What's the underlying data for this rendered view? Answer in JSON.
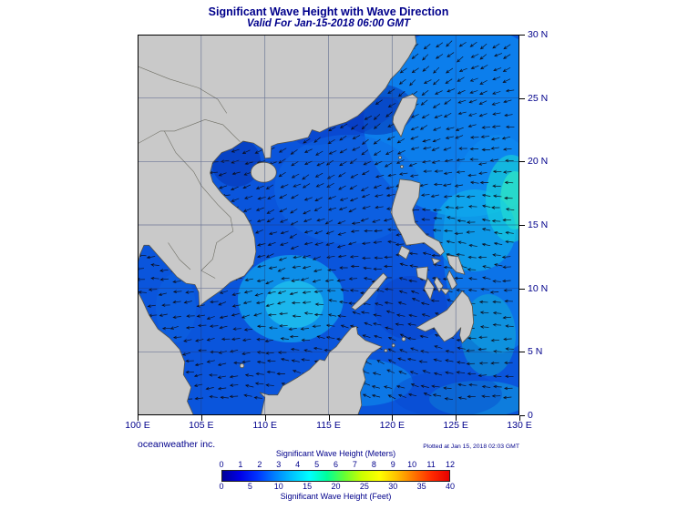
{
  "header": {
    "title": "Significant Wave Height with Wave Direction",
    "subtitle": "Valid For Jan-15-2018 06:00 GMT"
  },
  "axes": {
    "lon_ticks": [
      "100 E",
      "105 E",
      "110 E",
      "115 E",
      "120 E",
      "125 E",
      "130 E"
    ],
    "lat_ticks": [
      "30 N",
      "25 N",
      "20 N",
      "15 N",
      "10 N",
      "5 N",
      "0"
    ]
  },
  "legend": {
    "meters_label": "Significant Wave Height (Meters)",
    "meters_ticks": [
      "0",
      "1",
      "2",
      "3",
      "4",
      "5",
      "6",
      "7",
      "8",
      "9",
      "10",
      "11",
      "12"
    ],
    "feet_label": "Significant Wave Height (Feet)",
    "feet_ticks": [
      "0",
      "5",
      "10",
      "15",
      "20",
      "25",
      "30",
      "35",
      "40"
    ],
    "gradient_colors": [
      "#000099",
      "#0000e6",
      "#0033ff",
      "#0080ff",
      "#00c3ff",
      "#00ffff",
      "#00ff99",
      "#66ff33",
      "#ccff00",
      "#ffff00",
      "#ffbf00",
      "#ff7300",
      "#ff2a00",
      "#e60000"
    ]
  },
  "footer": {
    "credit": "oceanweather inc.",
    "plotted_at": "Plotted at Jan 15, 2018 02:03 GMT"
  },
  "colors": {
    "navy": "#00008b",
    "ocean": "#0a55dc",
    "land": "#c9c9c9",
    "coastline": "#55544a",
    "grid": "#25366e"
  },
  "chart_data": {
    "type": "heatmap",
    "title": "Significant Wave Height with Wave Direction",
    "valid_for": "Jan-15-2018 06:00 GMT",
    "x_axis": {
      "ticks": [
        "100 E",
        "105 E",
        "110 E",
        "115 E",
        "120 E",
        "125 E",
        "130 E"
      ],
      "range_lon_e": [
        100,
        130
      ]
    },
    "y_axis": {
      "ticks": [
        "0",
        "5 N",
        "10 N",
        "15 N",
        "20 N",
        "25 N",
        "30 N"
      ],
      "range_lat_n": [
        0,
        30
      ]
    },
    "overlay": "wave direction arrows over ocean",
    "colorbar": {
      "top_label": "Significant Wave Height (Meters)",
      "top_ticks": [
        0,
        1,
        2,
        3,
        4,
        5,
        6,
        7,
        8,
        9,
        10,
        11,
        12
      ],
      "bottom_label": "Significant Wave Height (Feet)",
      "bottom_ticks": [
        0,
        5,
        10,
        15,
        20,
        25,
        30,
        35,
        40
      ]
    }
  }
}
